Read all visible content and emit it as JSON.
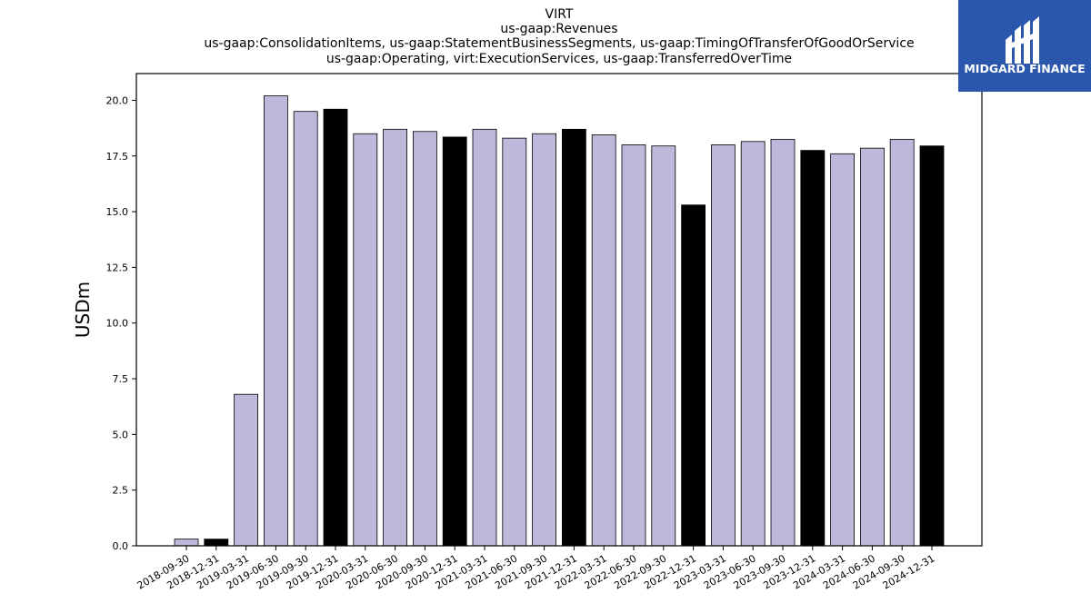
{
  "logo": {
    "text": "MIDGARD FINANCE",
    "bg_color": "#2a57ad"
  },
  "colors": {
    "bar_default": "#bcb9da",
    "bar_highlight": "#000000",
    "edge": "#000000"
  },
  "chart_data": {
    "type": "bar",
    "title_lines": [
      "VIRT",
      "us-gaap:Revenues",
      "us-gaap:ConsolidationItems, us-gaap:StatementBusinessSegments, us-gaap:TimingOfTransferOfGoodOrService",
      "us-gaap:Operating, virt:ExecutionServices, us-gaap:TransferredOverTime"
    ],
    "ylabel": "USDm",
    "xlabel": "",
    "ylim": [
      0,
      21.2
    ],
    "yticks": [
      "0.0",
      "2.5",
      "5.0",
      "7.5",
      "10.0",
      "12.5",
      "15.0",
      "17.5",
      "20.0"
    ],
    "grid": false,
    "categories": [
      "2018-09-30",
      "2018-12-31",
      "2019-03-31",
      "2019-06-30",
      "2019-09-30",
      "2019-12-31",
      "2020-03-31",
      "2020-06-30",
      "2020-09-30",
      "2020-12-31",
      "2021-03-31",
      "2021-06-30",
      "2021-09-30",
      "2021-12-31",
      "2022-03-31",
      "2022-06-30",
      "2022-09-30",
      "2022-12-31",
      "2023-03-31",
      "2023-06-30",
      "2023-09-30",
      "2023-12-31",
      "2024-03-31",
      "2024-06-30",
      "2024-09-30",
      "2024-12-31"
    ],
    "values": [
      0.3,
      0.3,
      6.8,
      20.2,
      19.5,
      19.6,
      18.5,
      18.7,
      18.6,
      18.35,
      18.7,
      18.3,
      18.5,
      18.7,
      18.45,
      18.0,
      17.95,
      15.3,
      18.0,
      18.15,
      18.25,
      17.75,
      17.6,
      17.85,
      18.25,
      17.95
    ],
    "highlight": [
      false,
      true,
      false,
      false,
      false,
      true,
      false,
      false,
      false,
      true,
      false,
      false,
      false,
      true,
      false,
      false,
      false,
      true,
      false,
      false,
      false,
      true,
      false,
      false,
      false,
      true
    ]
  }
}
